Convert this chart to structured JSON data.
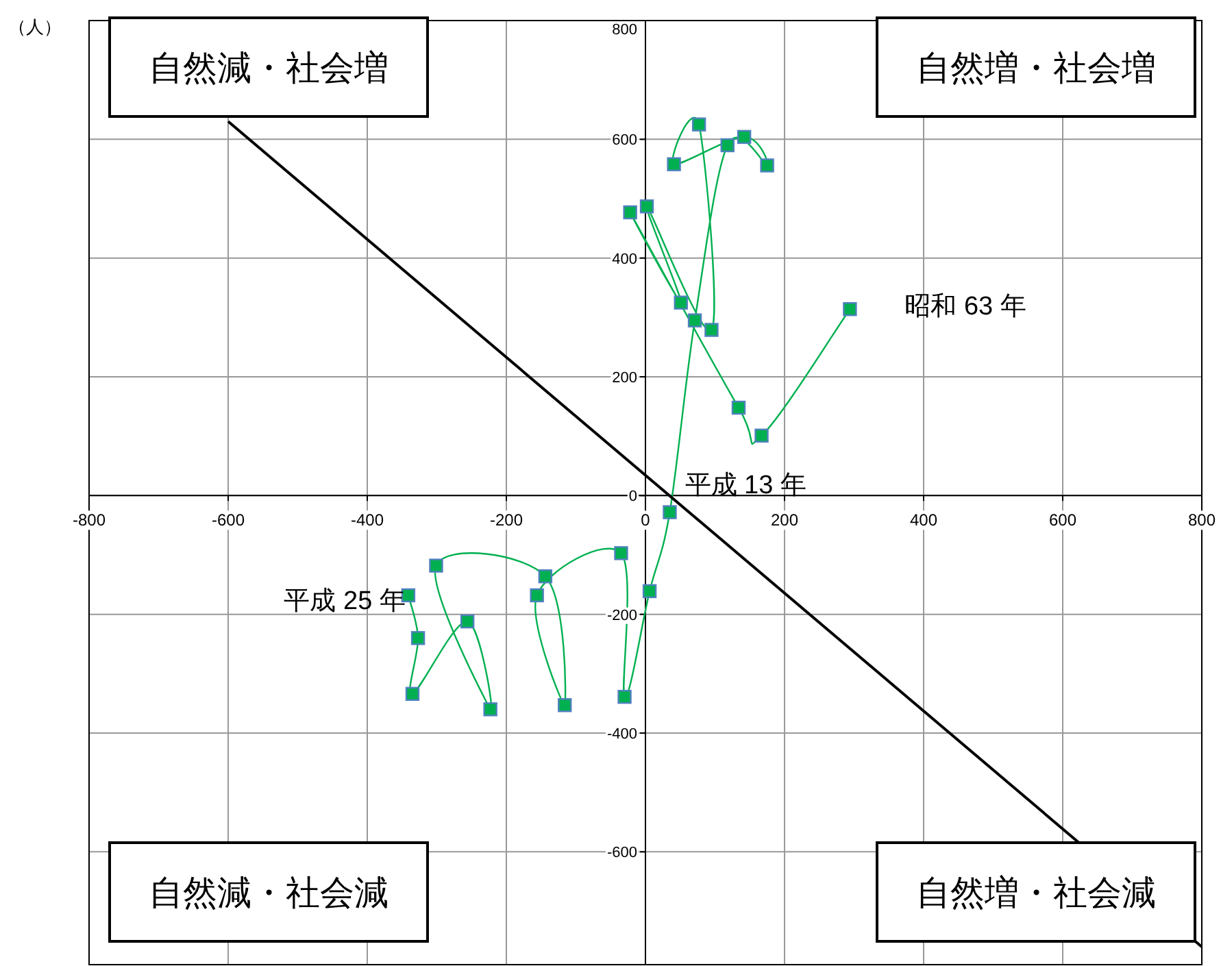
{
  "chart_data": {
    "type": "line",
    "ylabel": "（人）",
    "xlim": [
      -800,
      800
    ],
    "ylim": [
      -790,
      800
    ],
    "xticks": [
      -800,
      -600,
      -400,
      -200,
      0,
      200,
      400,
      600,
      800
    ],
    "yticks": [
      -600,
      -400,
      -200,
      0,
      200,
      400,
      600,
      800
    ],
    "grid": true,
    "marker": "square",
    "series": [
      {
        "color": "#00b050",
        "x": [
          294,
          167,
          134,
          -22,
          51,
          2,
          95,
          77,
          41,
          142,
          175,
          118,
          71,
          35,
          6,
          -30,
          -35,
          -156,
          -116,
          -144,
          -301,
          -223,
          -256,
          -335,
          -327,
          -341
        ],
        "values": [
          314,
          101,
          148,
          477,
          325,
          487,
          279,
          625,
          558,
          604,
          556,
          590,
          295,
          -28,
          -161,
          -339,
          -97,
          -168,
          -353,
          -136,
          -118,
          -360,
          -212,
          -334,
          -240,
          -168
        ]
      },
      {
        "type": "line",
        "marker": "none",
        "color": "#000000",
        "x": [
          -600,
          800
        ],
        "values": [
          630,
          -760
        ]
      }
    ],
    "annotations": [
      "自然減・社会増",
      "自然増・社会増",
      "自然減・社会減",
      "自然増・社会減",
      {
        "text": "昭和 63 年",
        "x": 294,
        "y": 314
      },
      {
        "text": "平成 13 年",
        "x": 35,
        "y": -28
      },
      {
        "text": "平成 25 年",
        "x": -341,
        "y": -168
      }
    ]
  }
}
